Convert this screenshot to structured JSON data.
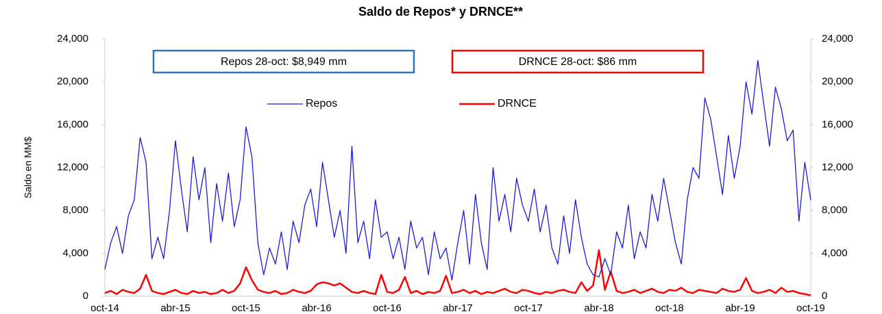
{
  "chart_data": {
    "type": "line",
    "title": "Saldo de Repos* y DRNCE**",
    "y_label": "Saldo en MM$",
    "annotations": [
      {
        "text": "Repos 28-oct: $8,949 mm",
        "color": "#2e75b6"
      },
      {
        "text": "DRNCE 28-oct: $86 mm",
        "color": "#ff0000"
      }
    ],
    "legend": "top",
    "categories": [
      "oct-14",
      null,
      null,
      null,
      null,
      null,
      null,
      null,
      null,
      null,
      null,
      null,
      "abr-15",
      null,
      null,
      null,
      null,
      null,
      null,
      null,
      null,
      null,
      null,
      null,
      "oct-15",
      null,
      null,
      null,
      null,
      null,
      null,
      null,
      null,
      null,
      null,
      null,
      "abr-16",
      null,
      null,
      null,
      null,
      null,
      null,
      null,
      null,
      null,
      null,
      null,
      "oct-16",
      null,
      null,
      null,
      null,
      null,
      null,
      null,
      null,
      null,
      null,
      null,
      "abr-17",
      null,
      null,
      null,
      null,
      null,
      null,
      null,
      null,
      null,
      null,
      null,
      "oct-17",
      null,
      null,
      null,
      null,
      null,
      null,
      null,
      null,
      null,
      null,
      null,
      "abr-18",
      null,
      null,
      null,
      null,
      null,
      null,
      null,
      null,
      null,
      null,
      null,
      "oct-18",
      null,
      null,
      null,
      null,
      null,
      null,
      null,
      null,
      null,
      null,
      null,
      "abr-19",
      null,
      null,
      null,
      null,
      null,
      null,
      null,
      null,
      null,
      null,
      null,
      "oct-19"
    ],
    "series": [
      {
        "name": "Repos",
        "color": "#1a1ad9",
        "width": 1.3,
        "values": [
          2500,
          5000,
          6500,
          4000,
          7500,
          9000,
          14800,
          12500,
          3500,
          5500,
          3500,
          8000,
          14500,
          10000,
          6000,
          13000,
          9000,
          12000,
          5000,
          10500,
          7000,
          11500,
          6500,
          9000,
          15800,
          13000,
          5000,
          2000,
          4500,
          3000,
          6000,
          2500,
          7000,
          5000,
          8500,
          10000,
          6500,
          12500,
          9000,
          5500,
          8000,
          4000,
          14000,
          5000,
          7000,
          3500,
          9000,
          5500,
          6000,
          3500,
          5500,
          2500,
          7000,
          4500,
          5500,
          2000,
          6000,
          3500,
          4500,
          1500,
          5000,
          8000,
          3000,
          9500,
          5000,
          2500,
          12000,
          7000,
          9500,
          6000,
          11000,
          8500,
          7000,
          10000,
          6000,
          8500,
          4500,
          3000,
          7500,
          4000,
          9000,
          5500,
          3000,
          2000,
          1800,
          3500,
          2000,
          6000,
          4500,
          8500,
          3500,
          6000,
          4500,
          9500,
          7000,
          11000,
          8000,
          5000,
          3000,
          9000,
          12000,
          11000,
          18500,
          16500,
          13000,
          9500,
          15000,
          11000,
          14000,
          20000,
          17000,
          22000,
          18000,
          14000,
          19500,
          17500,
          14500,
          15500,
          7000,
          12500,
          8949
        ]
      },
      {
        "name": "DRNCE",
        "color": "#ff0000",
        "width": 2.5,
        "values": [
          300,
          500,
          200,
          600,
          400,
          300,
          700,
          2000,
          500,
          300,
          200,
          400,
          600,
          300,
          200,
          500,
          300,
          400,
          200,
          300,
          600,
          300,
          500,
          1200,
          2700,
          1500,
          600,
          400,
          300,
          500,
          200,
          300,
          600,
          400,
          300,
          500,
          1100,
          1300,
          1200,
          1000,
          1200,
          800,
          400,
          300,
          500,
          300,
          200,
          2000,
          400,
          300,
          600,
          1800,
          300,
          500,
          200,
          400,
          300,
          500,
          1900,
          300,
          400,
          600,
          300,
          500,
          200,
          400,
          300,
          500,
          700,
          400,
          300,
          600,
          500,
          300,
          200,
          400,
          300,
          500,
          600,
          400,
          300,
          1300,
          500,
          1000,
          4300,
          600,
          2300,
          500,
          300,
          400,
          600,
          300,
          500,
          700,
          400,
          300,
          600,
          500,
          800,
          400,
          300,
          600,
          500,
          400,
          300,
          700,
          500,
          400,
          600,
          1700,
          500,
          300,
          400,
          600,
          300,
          800,
          400,
          500,
          300,
          200,
          86
        ]
      }
    ],
    "ylim": [
      0,
      24000
    ],
    "yticks": [
      0,
      {
        "value": 4000,
        "label": "4,000"
      },
      {
        "value": 8000,
        "label": "8,000"
      },
      {
        "value": 12000,
        "label": "12,000"
      },
      {
        "value": 16000,
        "label": "16,000"
      },
      {
        "value": 20000,
        "label": "20,000"
      },
      {
        "value": 24000,
        "label": "24,000"
      }
    ],
    "y2lim": [
      0,
      24000
    ],
    "y2ticks": [
      0,
      {
        "value": 4000,
        "label": "4,000"
      },
      {
        "value": 8000,
        "label": "8,000"
      },
      {
        "value": 12000,
        "label": "12,000"
      },
      {
        "value": 16000,
        "label": "16,000"
      },
      {
        "value": 20000,
        "label": "20,000"
      },
      {
        "value": 24000,
        "label": "24,000"
      }
    ],
    "grid": false
  }
}
